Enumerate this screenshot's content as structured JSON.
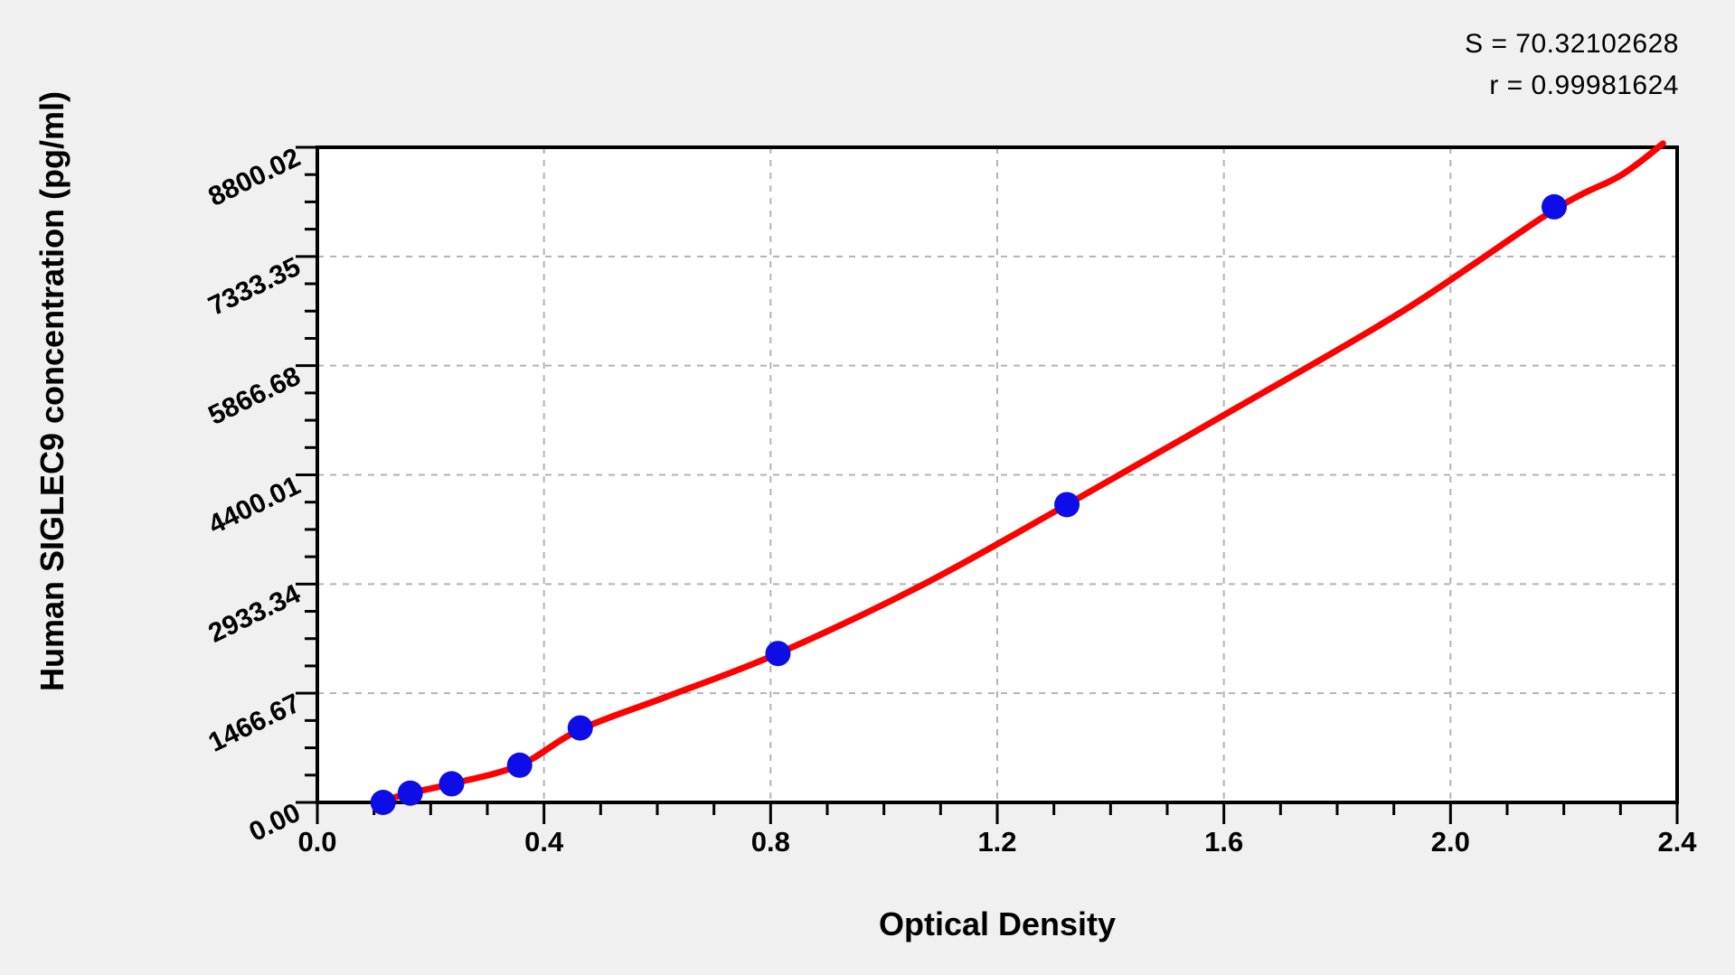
{
  "stats": {
    "s_label": "S = 70.32102628",
    "r_label": "r = 0.99981624"
  },
  "chart_data": {
    "type": "scatter",
    "title": "",
    "xlabel": "Optical Density",
    "ylabel": "Human SIGLEC9 concentration (pg/ml)",
    "xlim": [
      0.0,
      2.4
    ],
    "ylim": [
      0.0,
      8800.02
    ],
    "x_ticks": [
      0.0,
      0.4,
      0.8,
      1.2,
      1.6,
      2.0,
      2.4
    ],
    "x_tick_labels": [
      "0.0",
      "0.4",
      "0.8",
      "1.2",
      "1.6",
      "2.0",
      "2.4"
    ],
    "y_ticks": [
      0.0,
      1466.67,
      2933.34,
      4400.01,
      5866.68,
      7333.35,
      8800.02
    ],
    "y_tick_labels": [
      "0.00",
      "1466.67",
      "2933.34",
      "4400.01",
      "5866.68",
      "7333.35",
      "8800.02"
    ],
    "x_minor_per_major": 4,
    "y_minor_per_major": 4,
    "grid": "dashed-on-major-ticks",
    "legend": "none",
    "annotations": [
      "S = 70.32102628",
      "r = 0.99981624"
    ],
    "series": [
      {
        "name": "standard-points",
        "type": "scatter",
        "marker": "circle",
        "points": [
          {
            "od": 0.116,
            "conc": 0
          },
          {
            "od": 0.164,
            "conc": 125
          },
          {
            "od": 0.237,
            "conc": 250
          },
          {
            "od": 0.357,
            "conc": 500
          },
          {
            "od": 0.464,
            "conc": 1000
          },
          {
            "od": 0.813,
            "conc": 2000
          },
          {
            "od": 1.323,
            "conc": 4000
          },
          {
            "od": 2.183,
            "conc": 8000
          }
        ]
      },
      {
        "name": "fitted-curve",
        "type": "line",
        "points": [
          [
            0.107,
            0
          ],
          [
            0.164,
            125
          ],
          [
            0.237,
            250
          ],
          [
            0.357,
            500
          ],
          [
            0.464,
            980
          ],
          [
            0.62,
            1430
          ],
          [
            0.813,
            2000
          ],
          [
            1.07,
            2930
          ],
          [
            1.323,
            4000
          ],
          [
            1.62,
            5290
          ],
          [
            1.92,
            6620
          ],
          [
            2.183,
            7960
          ],
          [
            2.3,
            8420
          ],
          [
            2.375,
            8850
          ]
        ]
      }
    ]
  },
  "colors": {
    "background": "#f0f0f0",
    "plot_background": "#ffffff",
    "curve": "#fe0000",
    "points": "#0d0de8",
    "grid": "#b3b3b3",
    "axis": "#000000",
    "text": "#000000"
  }
}
